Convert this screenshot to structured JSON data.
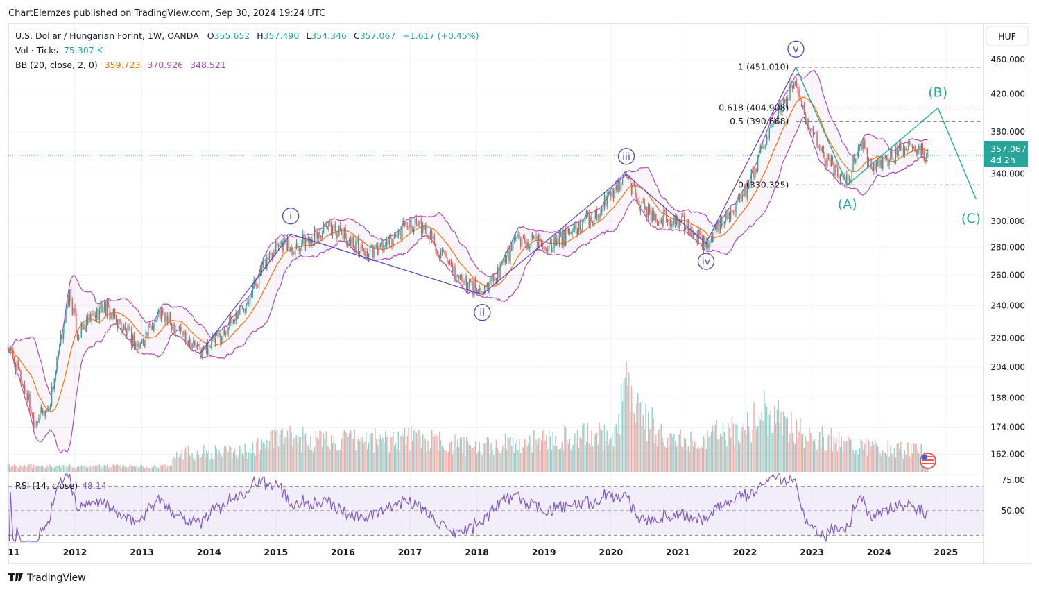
{
  "publish_line": "ChartElemzes published on TradingView.com, Sep 30, 2024 19:24 UTC",
  "legend": {
    "symbol": "U.S. Dollar / Hungarian Forint, 1W, OANDA",
    "o_label": "O",
    "o": "355.652",
    "h_label": "H",
    "h": "357.490",
    "l_label": "L",
    "l": "354.346",
    "c_label": "C",
    "c": "357.067",
    "change": "+1.617 (+0.45%)",
    "vol_label": "Vol · Ticks",
    "vol": "75.307 K",
    "bb_label": "BB (20, close, 2, 0)",
    "bb_basis": "359.723",
    "bb_upper": "370.926",
    "bb_lower": "348.521",
    "rsi_label": "RSI (14, close)",
    "rsi": "48.14"
  },
  "currency": "HUF",
  "last_price": {
    "value": "357.067",
    "countdown": "4d 2h"
  },
  "brand": "TradingView",
  "colors": {
    "up": "#26a69a",
    "down": "#ef5350",
    "bb_basis": "#ff6d00",
    "bb_band": "#9c27b0",
    "rsi": "#7e57c2",
    "wave": "#5b3cc4",
    "corr": "#22ab94"
  },
  "chart_data": {
    "type": "candlestick",
    "scale": "log",
    "timeframe": "1W",
    "x_ticks": [
      "11",
      "2012",
      "2013",
      "2014",
      "2015",
      "2016",
      "2017",
      "2018",
      "2019",
      "2020",
      "2021",
      "2022",
      "2023",
      "2024",
      "2025"
    ],
    "y_ticks": [
      460,
      420,
      380,
      340,
      300,
      280,
      260,
      240,
      220,
      204,
      188,
      174,
      162
    ],
    "y_tick_labels": [
      "460.000",
      "420.000",
      "380.000",
      "340.000",
      "300.000",
      "280.000",
      "260.000",
      "240.000",
      "220.000",
      "204.000",
      "188.000",
      "174.000",
      "162.000"
    ],
    "rsi_ticks": [
      {
        "v": 75,
        "label": "75.00"
      },
      {
        "v": 50,
        "label": "50.00"
      }
    ],
    "rsi_band": [
      30,
      70
    ],
    "price_path": [
      [
        2011.01,
        215
      ],
      [
        2011.3,
        188
      ],
      [
        2011.38,
        177
      ],
      [
        2011.61,
        183
      ],
      [
        2011.92,
        248
      ],
      [
        2012.04,
        222
      ],
      [
        2012.43,
        240
      ],
      [
        2012.95,
        215
      ],
      [
        2013.26,
        235
      ],
      [
        2013.57,
        225
      ],
      [
        2013.88,
        212
      ],
      [
        2014.19,
        222
      ],
      [
        2014.51,
        240
      ],
      [
        2015.02,
        285
      ],
      [
        2015.23,
        280
      ],
      [
        2015.85,
        295
      ],
      [
        2016.37,
        275
      ],
      [
        2016.68,
        282
      ],
      [
        2016.99,
        300
      ],
      [
        2017.3,
        290
      ],
      [
        2017.61,
        262
      ],
      [
        2018.08,
        248
      ],
      [
        2018.34,
        265
      ],
      [
        2018.59,
        285
      ],
      [
        2019.16,
        282
      ],
      [
        2019.78,
        305
      ],
      [
        2020.23,
        340
      ],
      [
        2020.41,
        315
      ],
      [
        2020.61,
        305
      ],
      [
        2021.03,
        300
      ],
      [
        2021.42,
        282
      ],
      [
        2021.75,
        305
      ],
      [
        2022.06,
        330
      ],
      [
        2022.27,
        370
      ],
      [
        2022.48,
        395
      ],
      [
        2022.76,
        440
      ],
      [
        2022.94,
        385
      ],
      [
        2023.2,
        355
      ],
      [
        2023.53,
        333
      ],
      [
        2023.72,
        370
      ],
      [
        2023.93,
        345
      ],
      [
        2024.34,
        365
      ],
      [
        2024.5,
        368
      ],
      [
        2024.73,
        357
      ]
    ],
    "volume_path_k": [
      [
        2011.0,
        22
      ],
      [
        2013.45,
        22
      ],
      [
        2013.46,
        75
      ],
      [
        2014.5,
        75
      ],
      [
        2015.0,
        130
      ],
      [
        2016.0,
        115
      ],
      [
        2017.0,
        130
      ],
      [
        2018.0,
        90
      ],
      [
        2019.0,
        125
      ],
      [
        2020.1,
        140
      ],
      [
        2020.2,
        400
      ],
      [
        2020.5,
        200
      ],
      [
        2021.0,
        115
      ],
      [
        2022.0,
        165
      ],
      [
        2022.3,
        230
      ],
      [
        2023.0,
        140
      ],
      [
        2024.0,
        90
      ],
      [
        2024.75,
        75
      ]
    ],
    "impulse_wave": [
      [
        2013.86,
        211.1
      ],
      [
        2015.22,
        290
      ],
      [
        2018.08,
        247.2
      ],
      [
        2020.23,
        339.6
      ],
      [
        2021.42,
        283
      ],
      [
        2022.76,
        451.01
      ]
    ],
    "wave_labels": [
      {
        "text": "i",
        "year": 2015.22,
        "price": 290,
        "pos": "above"
      },
      {
        "text": "ii",
        "year": 2018.08,
        "price": 247.2,
        "pos": "below"
      },
      {
        "text": "iii",
        "year": 2020.23,
        "price": 339.6,
        "pos": "above"
      },
      {
        "text": "iv",
        "year": 2021.42,
        "price": 283,
        "pos": "below"
      },
      {
        "text": "v",
        "year": 2022.76,
        "price": 451.01,
        "pos": "above"
      }
    ],
    "correction_wave": [
      [
        2022.76,
        451.01
      ],
      [
        2023.53,
        330.325
      ],
      [
        2024.88,
        404.908
      ],
      [
        2025.45,
        318
      ]
    ],
    "correction_labels": [
      {
        "text": "(A)",
        "year": 2023.53,
        "price": 330.325,
        "pos": "below"
      },
      {
        "text": "(B)",
        "year": 2024.88,
        "price": 404.908,
        "pos": "above"
      },
      {
        "text": "(C)",
        "year": 2025.45,
        "price": 318,
        "pos": "below"
      }
    ],
    "fib_levels": [
      {
        "label": "1 (451.010)",
        "price": 451.01
      },
      {
        "label": "0.618 (404.908)",
        "price": 404.908
      },
      {
        "label": "0.5 (390.668)",
        "price": 390.668
      },
      {
        "label": "0 (330.325)",
        "price": 330.325
      }
    ],
    "fib_start_year": 2022.76
  }
}
